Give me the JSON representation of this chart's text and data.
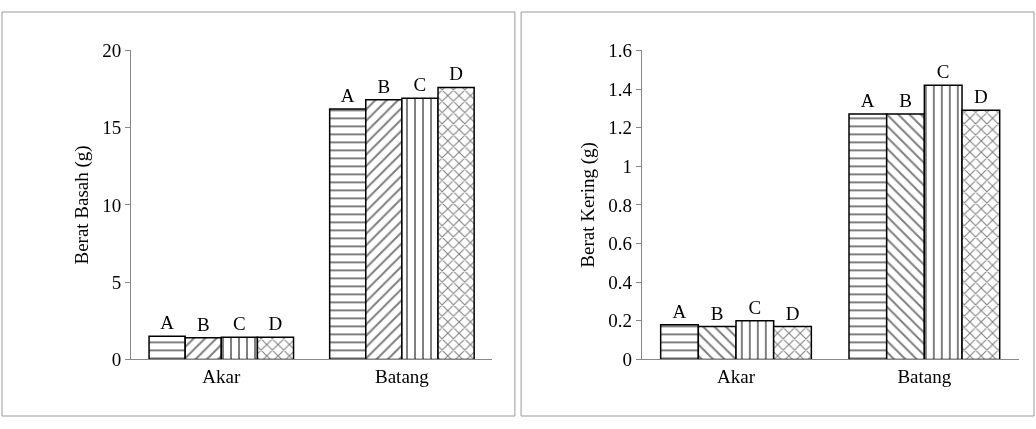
{
  "chart_data": [
    {
      "type": "bar",
      "ylabel": "Berat Basah (g)",
      "categories": [
        "Akar",
        "Batang"
      ],
      "ylim": [
        0,
        20
      ],
      "yticks": [
        0,
        5,
        10,
        15,
        20
      ],
      "legend": false,
      "series": [
        {
          "name": "A",
          "values": [
            1.5,
            16.2
          ]
        },
        {
          "name": "B",
          "values": [
            1.4,
            16.8
          ]
        },
        {
          "name": "C",
          "values": [
            1.43,
            16.9
          ]
        },
        {
          "name": "D",
          "values": [
            1.43,
            17.6
          ]
        }
      ]
    },
    {
      "type": "bar",
      "ylabel": "Berat Kering (g)",
      "categories": [
        "Akar",
        "Batang"
      ],
      "ylim": [
        0,
        1.6
      ],
      "yticks": [
        0,
        0.2,
        0.4,
        0.6,
        0.8,
        1,
        1.2,
        1.4,
        1.6
      ],
      "legend": false,
      "series": [
        {
          "name": "A",
          "values": [
            0.18,
            1.27
          ]
        },
        {
          "name": "B",
          "values": [
            0.17,
            1.27
          ]
        },
        {
          "name": "C",
          "values": [
            0.2,
            1.42
          ]
        },
        {
          "name": "D",
          "values": [
            0.17,
            1.29
          ]
        }
      ]
    }
  ]
}
